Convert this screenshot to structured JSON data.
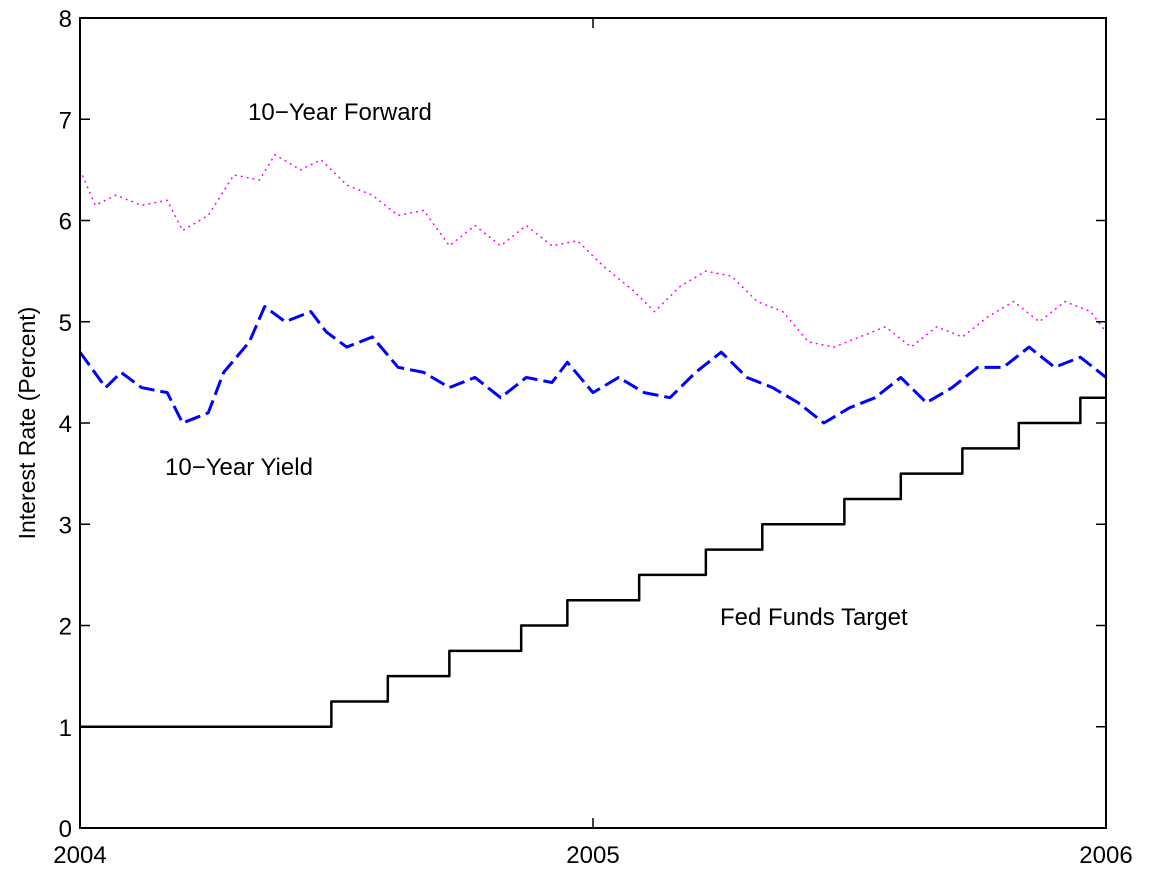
{
  "chart_data": {
    "type": "line",
    "ylabel": "Interest Rate (Percent)",
    "xlim": [
      2004,
      2006
    ],
    "xticks": [
      2004,
      2005,
      2006
    ],
    "ylim": [
      0,
      8
    ],
    "yticks": [
      0,
      1,
      2,
      3,
      4,
      5,
      6,
      7,
      8
    ],
    "grid": false,
    "series": [
      {
        "name": "10−Year Forward",
        "color": "#ff00ff",
        "linestyle": "dotted",
        "x": [
          2004.0,
          2004.03,
          2004.07,
          2004.12,
          2004.17,
          2004.2,
          2004.25,
          2004.3,
          2004.35,
          2004.38,
          2004.43,
          2004.47,
          2004.52,
          2004.57,
          2004.62,
          2004.67,
          2004.72,
          2004.77,
          2004.82,
          2004.87,
          2004.92,
          2004.97,
          2005.02,
          2005.08,
          2005.12,
          2005.17,
          2005.22,
          2005.27,
          2005.32,
          2005.37,
          2005.42,
          2005.47,
          2005.52,
          2005.57,
          2005.62,
          2005.67,
          2005.72,
          2005.77,
          2005.82,
          2005.87,
          2005.92,
          2005.97,
          2006.0
        ],
        "values": [
          6.5,
          6.15,
          6.25,
          6.15,
          6.2,
          5.9,
          6.05,
          6.45,
          6.4,
          6.65,
          6.5,
          6.6,
          6.35,
          6.25,
          6.05,
          6.1,
          5.75,
          5.95,
          5.75,
          5.95,
          5.75,
          5.8,
          5.55,
          5.3,
          5.1,
          5.35,
          5.5,
          5.45,
          5.2,
          5.1,
          4.8,
          4.75,
          4.85,
          4.95,
          4.75,
          4.95,
          4.85,
          5.05,
          5.2,
          5.0,
          5.2,
          5.1,
          4.9
        ]
      },
      {
        "name": "10−Year Yield",
        "color": "#0000ff",
        "linestyle": "dashed",
        "x": [
          2004.0,
          2004.05,
          2004.08,
          2004.12,
          2004.17,
          2004.2,
          2004.25,
          2004.28,
          2004.33,
          2004.36,
          2004.4,
          2004.45,
          2004.48,
          2004.52,
          2004.57,
          2004.62,
          2004.67,
          2004.72,
          2004.77,
          2004.82,
          2004.87,
          2004.92,
          2004.95,
          2005.0,
          2005.05,
          2005.1,
          2005.15,
          2005.2,
          2005.25,
          2005.3,
          2005.35,
          2005.4,
          2005.45,
          2005.5,
          2005.55,
          2005.6,
          2005.65,
          2005.7,
          2005.75,
          2005.8,
          2005.85,
          2005.9,
          2005.95,
          2006.0
        ],
        "values": [
          4.7,
          4.35,
          4.5,
          4.35,
          4.3,
          4.0,
          4.1,
          4.5,
          4.8,
          5.15,
          5.0,
          5.1,
          4.9,
          4.75,
          4.85,
          4.55,
          4.5,
          4.35,
          4.45,
          4.25,
          4.45,
          4.4,
          4.6,
          4.3,
          4.45,
          4.3,
          4.25,
          4.5,
          4.7,
          4.45,
          4.35,
          4.2,
          4.0,
          4.15,
          4.25,
          4.45,
          4.2,
          4.35,
          4.55,
          4.55,
          4.75,
          4.55,
          4.65,
          4.45
        ]
      },
      {
        "name": "Fed Funds Target",
        "color": "#000000",
        "linestyle": "solid",
        "drawstyle": "steps-post",
        "x": [
          2004.0,
          2004.49,
          2004.6,
          2004.72,
          2004.86,
          2004.95,
          2005.09,
          2005.22,
          2005.33,
          2005.49,
          2005.6,
          2005.72,
          2005.83,
          2005.95,
          2006.0
        ],
        "values": [
          1,
          1.25,
          1.5,
          1.75,
          2,
          2.25,
          2.5,
          2.75,
          3,
          3.25,
          3.5,
          3.75,
          4,
          4.25,
          4.25
        ]
      }
    ]
  }
}
